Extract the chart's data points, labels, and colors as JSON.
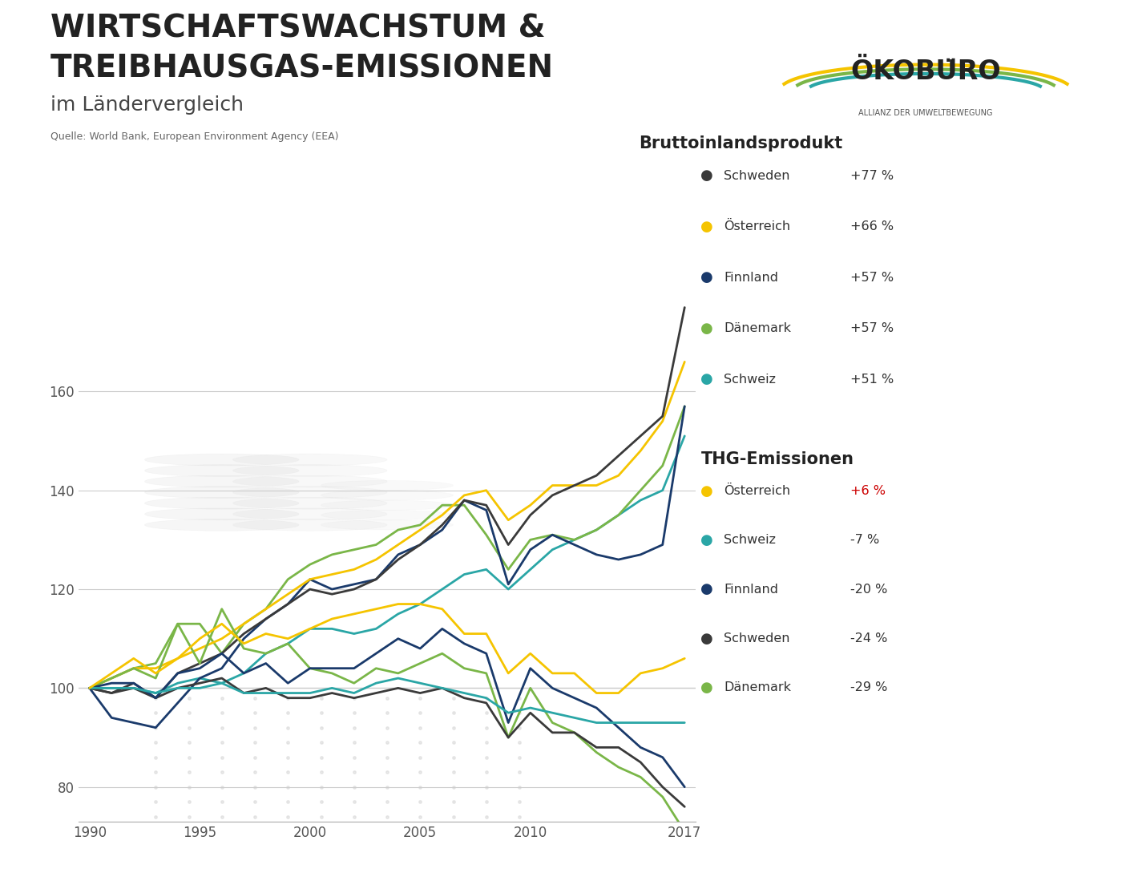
{
  "years": [
    1990,
    1991,
    1992,
    1993,
    1994,
    1995,
    1996,
    1997,
    1998,
    1999,
    2000,
    2001,
    2002,
    2003,
    2004,
    2005,
    2006,
    2007,
    2008,
    2009,
    2010,
    2011,
    2012,
    2013,
    2014,
    2015,
    2016,
    2017
  ],
  "gdp": {
    "Schweden": [
      100,
      99,
      101,
      98,
      103,
      105,
      107,
      111,
      114,
      117,
      120,
      119,
      120,
      122,
      126,
      129,
      133,
      138,
      137,
      129,
      135,
      139,
      141,
      143,
      147,
      151,
      155,
      177
    ],
    "Oesterreich": [
      100,
      102,
      104,
      104,
      106,
      108,
      110,
      113,
      116,
      119,
      122,
      123,
      124,
      126,
      129,
      132,
      135,
      139,
      140,
      134,
      137,
      141,
      141,
      141,
      143,
      148,
      154,
      166
    ],
    "Finnland": [
      100,
      94,
      93,
      92,
      97,
      102,
      104,
      110,
      114,
      117,
      122,
      120,
      121,
      122,
      127,
      129,
      132,
      138,
      136,
      121,
      128,
      131,
      129,
      127,
      126,
      127,
      129,
      157
    ],
    "Daenemark": [
      100,
      102,
      104,
      105,
      113,
      113,
      107,
      113,
      116,
      122,
      125,
      127,
      128,
      129,
      132,
      133,
      137,
      137,
      131,
      124,
      130,
      131,
      130,
      132,
      135,
      140,
      145,
      157
    ],
    "Schweiz": [
      100,
      100,
      100,
      99,
      101,
      102,
      101,
      103,
      107,
      109,
      112,
      112,
      111,
      112,
      115,
      117,
      120,
      123,
      124,
      120,
      124,
      128,
      130,
      132,
      135,
      138,
      140,
      151
    ]
  },
  "thg": {
    "Oesterreich": [
      100,
      103,
      106,
      103,
      106,
      110,
      113,
      109,
      111,
      110,
      112,
      114,
      115,
      116,
      117,
      117,
      116,
      111,
      111,
      103,
      107,
      103,
      103,
      99,
      99,
      103,
      104,
      106
    ],
    "Schweiz": [
      100,
      100,
      100,
      99,
      100,
      100,
      101,
      99,
      99,
      99,
      99,
      100,
      99,
      101,
      102,
      101,
      100,
      99,
      98,
      95,
      96,
      95,
      94,
      93,
      93,
      93,
      93,
      93
    ],
    "Finnland": [
      100,
      101,
      101,
      98,
      103,
      104,
      107,
      103,
      105,
      101,
      104,
      104,
      104,
      107,
      110,
      108,
      112,
      109,
      107,
      93,
      104,
      100,
      98,
      96,
      92,
      88,
      86,
      80
    ],
    "Schweden": [
      100,
      99,
      100,
      98,
      100,
      101,
      102,
      99,
      100,
      98,
      98,
      99,
      98,
      99,
      100,
      99,
      100,
      98,
      97,
      90,
      95,
      91,
      91,
      88,
      88,
      85,
      80,
      76
    ],
    "Daenemark": [
      100,
      102,
      104,
      102,
      113,
      105,
      116,
      108,
      107,
      109,
      104,
      103,
      101,
      104,
      103,
      105,
      107,
      104,
      103,
      90,
      100,
      93,
      91,
      87,
      84,
      82,
      78,
      71
    ]
  },
  "gdp_colors": {
    "Schweden": "#3a3a3a",
    "Oesterreich": "#f5c400",
    "Finnland": "#1a3a6b",
    "Daenemark": "#7ab648",
    "Schweiz": "#2aa6a6"
  },
  "thg_colors": {
    "Oesterreich": "#f5c400",
    "Schweiz": "#2aa6a6",
    "Finnland": "#1a3a6b",
    "Schweden": "#3a3a3a",
    "Daenemark": "#7ab648"
  },
  "gdp_legend": [
    {
      "label": "Schweden",
      "pct": "+77 %",
      "color": "#3a3a3a",
      "pct_color": "#333333"
    },
    {
      "label": "Österreich",
      "pct": "+66 %",
      "color": "#f5c400",
      "pct_color": "#333333"
    },
    {
      "label": "Finnland",
      "pct": "+57 %",
      "color": "#1a3a6b",
      "pct_color": "#333333"
    },
    {
      "label": "Dänemark",
      "pct": "+57 %",
      "color": "#7ab648",
      "pct_color": "#333333"
    },
    {
      "label": "Schweiz",
      "pct": "+51 %",
      "color": "#2aa6a6",
      "pct_color": "#333333"
    }
  ],
  "thg_legend": [
    {
      "label": "Österreich",
      "pct": "+6 %",
      "color": "#f5c400",
      "pct_color": "#cc0000"
    },
    {
      "label": "Schweiz",
      "pct": "-7 %",
      "color": "#2aa6a6",
      "pct_color": "#333333"
    },
    {
      "label": "Finnland",
      "pct": "-20 %",
      "color": "#1a3a6b",
      "pct_color": "#333333"
    },
    {
      "label": "Schweden",
      "pct": "-24 %",
      "color": "#3a3a3a",
      "pct_color": "#333333"
    },
    {
      "label": "Dänemark",
      "pct": "-29 %",
      "color": "#7ab648",
      "pct_color": "#333333"
    }
  ],
  "title_line1": "WIRTSCHAFTSWACHSTUM &",
  "title_line2": "TREIBHAUSGAS-EMISSIONEN",
  "title_line3": "im Ländervergleich",
  "source_text": "Quelle: World Bank, European Environment Agency (EEA)",
  "gdp_section_title": "Bruttoinlandsprodukt",
  "thg_section_title": "THG-Emissionen",
  "yticks": [
    80,
    100,
    120,
    140,
    160
  ],
  "xlim": [
    1990,
    2017
  ],
  "ylim": [
    73,
    185
  ],
  "background_color": "#ffffff",
  "grid_color": "#cccccc",
  "line_width": 2.0
}
